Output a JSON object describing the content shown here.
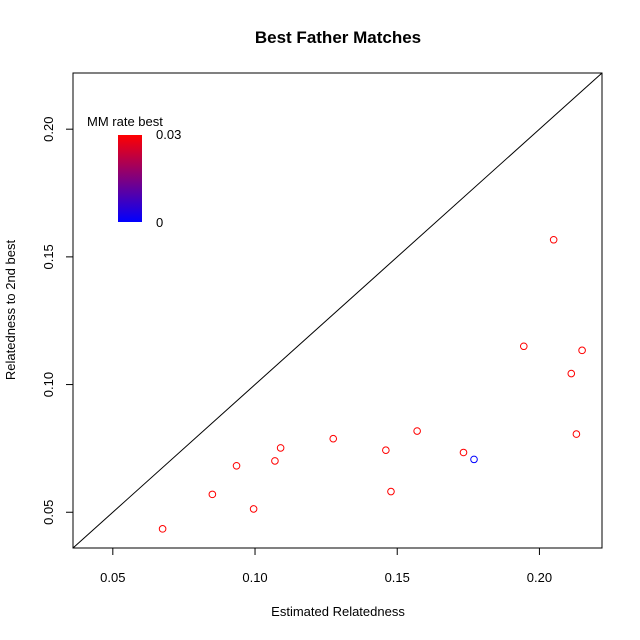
{
  "chart_data": {
    "type": "scatter",
    "title": "Best Father Matches",
    "xlabel": "Estimated Relatedness",
    "ylabel": "Relatedness to 2nd best",
    "xlim": [
      0.036,
      0.222
    ],
    "ylim": [
      0.036,
      0.222
    ],
    "x_ticks": [
      0.05,
      0.1,
      0.15,
      0.2
    ],
    "x_tick_labels": [
      "0.05",
      "0.10",
      "0.15",
      "0.20"
    ],
    "y_ticks": [
      0.05,
      0.1,
      0.15,
      0.2
    ],
    "y_tick_labels": [
      "0.05",
      "0.10",
      "0.15",
      "0.20"
    ],
    "reference_line": "y = x",
    "grid": false,
    "legend": {
      "title": "MM rate best",
      "placement": "top-left",
      "max_label": "0.03",
      "min_label": "0",
      "color_low": "#0000ff",
      "color_high": "#ff0000"
    },
    "points": [
      {
        "x": 0.0675,
        "y": 0.0435,
        "color": "#ff0000"
      },
      {
        "x": 0.085,
        "y": 0.057,
        "color": "#ff0000"
      },
      {
        "x": 0.0935,
        "y": 0.0682,
        "color": "#ff0000"
      },
      {
        "x": 0.0995,
        "y": 0.0513,
        "color": "#ff0000"
      },
      {
        "x": 0.107,
        "y": 0.0701,
        "color": "#ff0000"
      },
      {
        "x": 0.109,
        "y": 0.0752,
        "color": "#ff0000"
      },
      {
        "x": 0.1275,
        "y": 0.0788,
        "color": "#ff0000"
      },
      {
        "x": 0.146,
        "y": 0.0743,
        "color": "#ff0000"
      },
      {
        "x": 0.1478,
        "y": 0.0581,
        "color": "#ff0000"
      },
      {
        "x": 0.157,
        "y": 0.0818,
        "color": "#ff0000"
      },
      {
        "x": 0.1733,
        "y": 0.0734,
        "color": "#ff0000"
      },
      {
        "x": 0.177,
        "y": 0.0707,
        "color": "#0000ff"
      },
      {
        "x": 0.1945,
        "y": 0.115,
        "color": "#ff0000"
      },
      {
        "x": 0.205,
        "y": 0.1567,
        "color": "#ff0000"
      },
      {
        "x": 0.2112,
        "y": 0.1043,
        "color": "#ff0000"
      },
      {
        "x": 0.213,
        "y": 0.0806,
        "color": "#ff0000"
      },
      {
        "x": 0.215,
        "y": 0.1134,
        "color": "#ff0000"
      }
    ]
  }
}
